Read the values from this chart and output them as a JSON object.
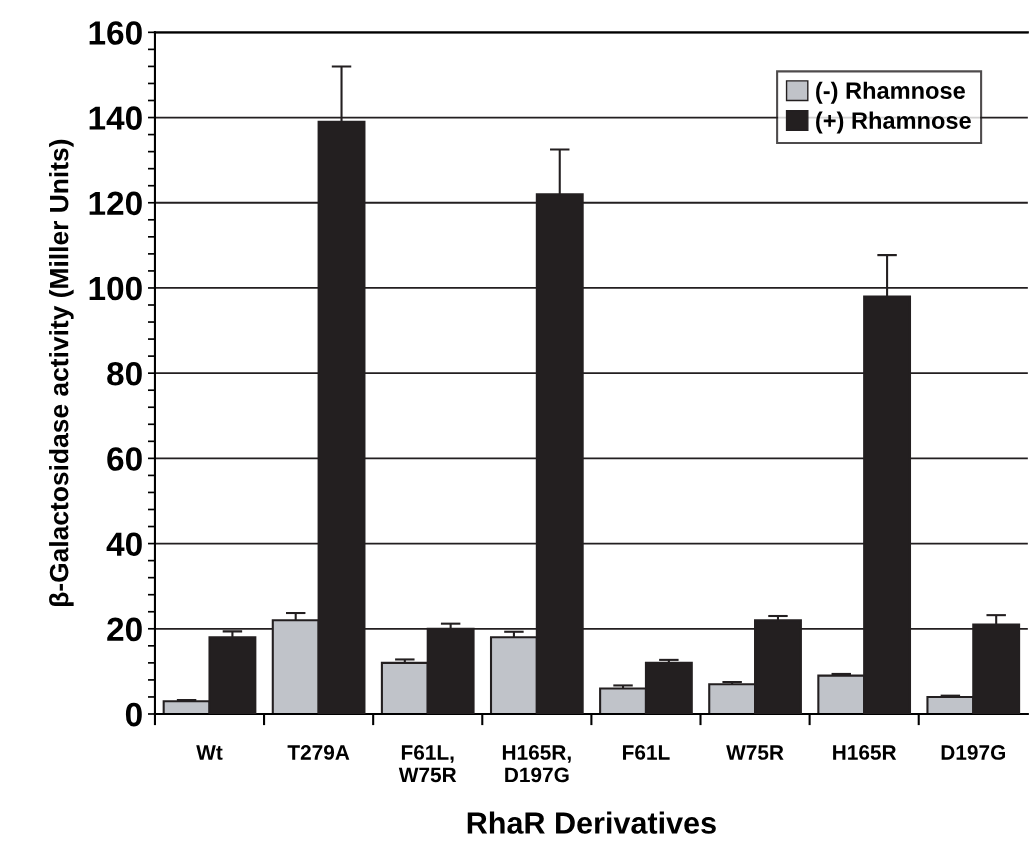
{
  "chart_data": {
    "type": "bar",
    "xlabel": "RhaR Derivatives",
    "ylabel": "β-Galactosidase activity (Miller Units)",
    "categories": [
      "Wt",
      "T279A",
      "F61L,\nW75R",
      "H165R,\nD197G",
      "F61L",
      "W75R",
      "H165R",
      "D197G"
    ],
    "series": [
      {
        "name": "(-) Rhamnose",
        "color": "#c0c3c9",
        "values": [
          3,
          22,
          12,
          18,
          6,
          7,
          9,
          4
        ],
        "errors": [
          0.3,
          1.7,
          0.8,
          1.3,
          0.7,
          0.5,
          0.4,
          0.3
        ]
      },
      {
        "name": "(+) Rhamnose",
        "color": "#231f20",
        "values": [
          18,
          139,
          20,
          122,
          12,
          22,
          98,
          21
        ],
        "errors": [
          1.4,
          13,
          1.2,
          10.5,
          0.7,
          1,
          9.7,
          2.2
        ]
      }
    ],
    "ylim": [
      0,
      160
    ],
    "yticks": [
      0,
      {
        "value": 4,
        "label": null
      },
      {
        "value": 8,
        "label": null
      },
      {
        "value": 12,
        "label": null
      },
      {
        "value": 16,
        "label": null
      },
      20,
      {
        "value": 24,
        "label": null
      },
      {
        "value": 28,
        "label": null
      },
      {
        "value": 32,
        "label": null
      },
      {
        "value": 36,
        "label": null
      },
      40,
      {
        "value": 44,
        "label": null
      },
      {
        "value": 48,
        "label": null
      },
      {
        "value": 52,
        "label": null
      },
      {
        "value": 56,
        "label": null
      },
      60,
      {
        "value": 64,
        "label": null
      },
      {
        "value": 68,
        "label": null
      },
      {
        "value": 72,
        "label": null
      },
      {
        "value": 76,
        "label": null
      },
      80,
      {
        "value": 84,
        "label": null
      },
      {
        "value": 88,
        "label": null
      },
      {
        "value": 92,
        "label": null
      },
      {
        "value": 96,
        "label": null
      },
      100,
      {
        "value": 104,
        "label": null
      },
      {
        "value": 108,
        "label": null
      },
      {
        "value": 112,
        "label": null
      },
      {
        "value": 116,
        "label": null
      },
      120,
      {
        "value": 124,
        "label": null
      },
      {
        "value": 128,
        "label": null
      },
      {
        "value": 132,
        "label": null
      },
      {
        "value": 136,
        "label": null
      },
      140,
      {
        "value": 144,
        "label": null
      },
      {
        "value": 148,
        "label": null
      },
      {
        "value": 152,
        "label": null
      },
      {
        "value": 156,
        "label": null
      },
      160
    ],
    "grid": "y",
    "legend": "top right"
  }
}
